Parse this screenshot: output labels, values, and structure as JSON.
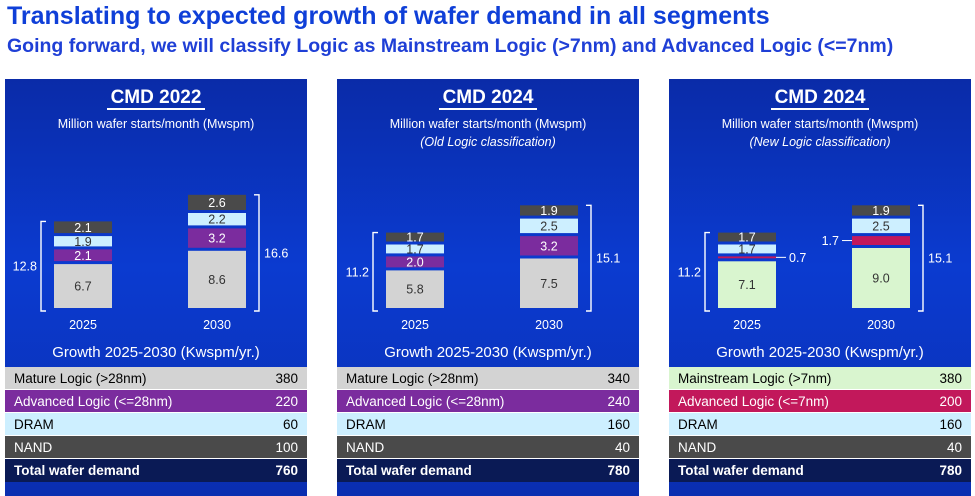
{
  "header": {
    "title": "Translating to expected growth of wafer demand in all segments",
    "subtitle": "Going forward, we will classify Logic as Mainstream Logic (>7nm) and Advanced Logic (<=7nm)"
  },
  "colors": {
    "gray_segment": "#d3d3d3",
    "purple_logic": "#7b2c9e",
    "magenta_logic": "#c2185b",
    "dram_blue": "#cdefff",
    "nand_dark": "#4a4a4a",
    "mainstream_green": "#d9f5cf",
    "total_row": "#0a1a55"
  },
  "panels": [
    {
      "heading": "CMD 2022",
      "unit": "Million wafer starts/month (Mwspm)",
      "note": "",
      "growth_title": "Growth 2025-2030 (Kwspm/yr.)",
      "table": [
        {
          "label": "Mature Logic (>28nm)",
          "value": "380"
        },
        {
          "label": "Advanced Logic (<=28nm)",
          "value": "220"
        },
        {
          "label": "DRAM",
          "value": "60"
        },
        {
          "label": "NAND",
          "value": "100"
        },
        {
          "label": "Total wafer demand",
          "value": "760"
        }
      ]
    },
    {
      "heading": "CMD 2024",
      "unit": "Million wafer starts/month (Mwspm)",
      "note": "(Old Logic classification)",
      "growth_title": "Growth 2025-2030 (Kwspm/yr.)",
      "table": [
        {
          "label": "Mature Logic (>28nm)",
          "value": "340"
        },
        {
          "label": "Advanced Logic (<=28nm)",
          "value": "240"
        },
        {
          "label": "DRAM",
          "value": "160"
        },
        {
          "label": "NAND",
          "value": "40"
        },
        {
          "label": "Total wafer demand",
          "value": "780"
        }
      ]
    },
    {
      "heading": "CMD 2024",
      "unit": "Million wafer starts/month (Mwspm)",
      "note": "(New Logic classification)",
      "growth_title": "Growth 2025-2030 (Kwspm/yr.)",
      "table": [
        {
          "label": "Mainstream Logic (>7nm)",
          "value": "380"
        },
        {
          "label": "Advanced Logic (<=7nm)",
          "value": "200"
        },
        {
          "label": "DRAM",
          "value": "160"
        },
        {
          "label": "NAND",
          "value": "40"
        },
        {
          "label": "Total wafer demand",
          "value": "780"
        }
      ]
    }
  ],
  "chart_data": [
    {
      "type": "bar",
      "stacked": true,
      "categories": [
        "2025",
        "2030"
      ],
      "totals": [
        12.8,
        16.6
      ],
      "series": [
        {
          "values": [
            6.7,
            8.6
          ],
          "color": "#d3d3d3"
        },
        {
          "values": [
            2.1,
            3.2
          ],
          "color": "#7b2c9e"
        },
        {
          "values": [
            1.9,
            2.2
          ],
          "color": "#cdefff"
        },
        {
          "values": [
            2.1,
            2.6
          ],
          "color": "#4a4a4a"
        }
      ]
    },
    {
      "type": "bar",
      "stacked": true,
      "categories": [
        "2025",
        "2030"
      ],
      "totals": [
        11.2,
        15.1
      ],
      "series": [
        {
          "values": [
            5.8,
            7.5
          ],
          "color": "#d3d3d3"
        },
        {
          "values": [
            2.0,
            3.2
          ],
          "color": "#7b2c9e"
        },
        {
          "values": [
            1.7,
            2.5
          ],
          "color": "#cdefff"
        },
        {
          "values": [
            1.7,
            1.9
          ],
          "color": "#4a4a4a"
        }
      ]
    },
    {
      "type": "bar",
      "stacked": true,
      "categories": [
        "2025",
        "2030"
      ],
      "totals": [
        11.2,
        15.1
      ],
      "series": [
        {
          "values": [
            7.1,
            9.0
          ],
          "color": "#d9f5cf"
        },
        {
          "values": [
            0.7,
            1.7
          ],
          "color": "#c2185b",
          "labels_outside": true
        },
        {
          "values": [
            1.7,
            2.5
          ],
          "color": "#cdefff"
        },
        {
          "values": [
            1.7,
            1.9
          ],
          "color": "#4a4a4a"
        }
      ]
    }
  ]
}
